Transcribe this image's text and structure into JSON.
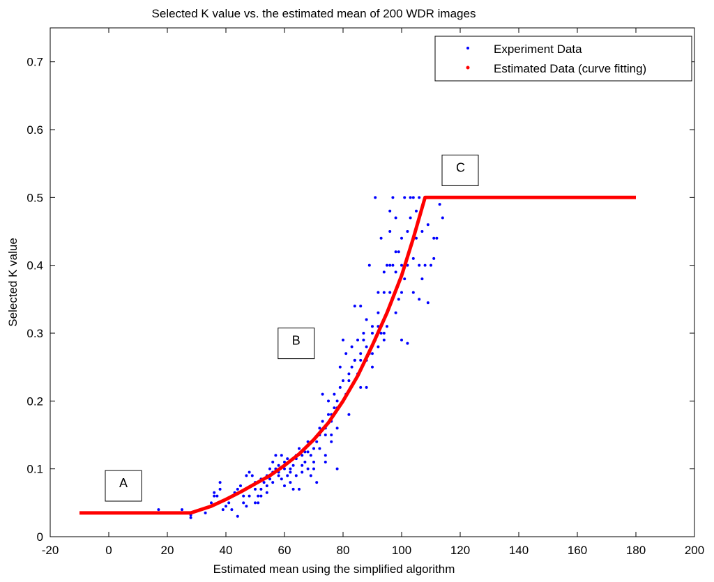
{
  "chart_data": {
    "type": "scatter",
    "title": "Selected K value vs. the estimated mean of 200 WDR images",
    "xlabel": "Estimated mean using the simplified algorithm",
    "ylabel": "Selected K value",
    "xlim": [
      -20,
      200
    ],
    "ylim": [
      0,
      0.75
    ],
    "xticks": [
      -20,
      0,
      20,
      40,
      60,
      80,
      100,
      120,
      140,
      160,
      180,
      200
    ],
    "xtick_labels": [
      "-20",
      "0",
      "20",
      "40",
      "60",
      "80",
      "100",
      "120",
      "140",
      "160",
      "180",
      "200"
    ],
    "yticks": [
      0,
      0.1,
      0.2,
      0.3,
      0.4,
      0.5,
      0.6,
      0.7
    ],
    "ytick_labels": [
      "0",
      "0.1",
      "0.2",
      "0.3",
      "0.4",
      "0.5",
      "0.6",
      "0.7"
    ],
    "grid": false,
    "legend_position": "top-right",
    "series": [
      {
        "name": "Experiment Data",
        "kind": "scatter",
        "color": "#0000ff",
        "points": [
          [
            17,
            0.04
          ],
          [
            25,
            0.04
          ],
          [
            28,
            0.028
          ],
          [
            28,
            0.032
          ],
          [
            33,
            0.035
          ],
          [
            35,
            0.05
          ],
          [
            36,
            0.065
          ],
          [
            37,
            0.06
          ],
          [
            38,
            0.08
          ],
          [
            39,
            0.04
          ],
          [
            40,
            0.045
          ],
          [
            41,
            0.05
          ],
          [
            42,
            0.06
          ],
          [
            43,
            0.065
          ],
          [
            44,
            0.03
          ],
          [
            44,
            0.07
          ],
          [
            45,
            0.075
          ],
          [
            46,
            0.05
          ],
          [
            47,
            0.045
          ],
          [
            47,
            0.09
          ],
          [
            48,
            0.06
          ],
          [
            48,
            0.095
          ],
          [
            49,
            0.09
          ],
          [
            50,
            0.05
          ],
          [
            50,
            0.08
          ],
          [
            51,
            0.06
          ],
          [
            51,
            0.05
          ],
          [
            52,
            0.07
          ],
          [
            52,
            0.085
          ],
          [
            53,
            0.08
          ],
          [
            54,
            0.065
          ],
          [
            54,
            0.09
          ],
          [
            55,
            0.085
          ],
          [
            55,
            0.1
          ],
          [
            56,
            0.08
          ],
          [
            56,
            0.11
          ],
          [
            57,
            0.1
          ],
          [
            57,
            0.12
          ],
          [
            58,
            0.09
          ],
          [
            58,
            0.095
          ],
          [
            59,
            0.085
          ],
          [
            59,
            0.12
          ],
          [
            60,
            0.075
          ],
          [
            60,
            0.1
          ],
          [
            60,
            0.11
          ],
          [
            61,
            0.09
          ],
          [
            61,
            0.115
          ],
          [
            62,
            0.08
          ],
          [
            62,
            0.1
          ],
          [
            63,
            0.07
          ],
          [
            63,
            0.105
          ],
          [
            64,
            0.09
          ],
          [
            64,
            0.12
          ],
          [
            65,
            0.13
          ],
          [
            65,
            0.07
          ],
          [
            66,
            0.12
          ],
          [
            66,
            0.095
          ],
          [
            67,
            0.11
          ],
          [
            67,
            0.125
          ],
          [
            68,
            0.1
          ],
          [
            68,
            0.14
          ],
          [
            69,
            0.12
          ],
          [
            69,
            0.09
          ],
          [
            70,
            0.1
          ],
          [
            70,
            0.13
          ],
          [
            71,
            0.14
          ],
          [
            71,
            0.08
          ],
          [
            72,
            0.15
          ],
          [
            72,
            0.16
          ],
          [
            73,
            0.17
          ],
          [
            73,
            0.21
          ],
          [
            74,
            0.16
          ],
          [
            74,
            0.11
          ],
          [
            75,
            0.18
          ],
          [
            75,
            0.2
          ],
          [
            76,
            0.17
          ],
          [
            76,
            0.15
          ],
          [
            77,
            0.19
          ],
          [
            77,
            0.21
          ],
          [
            78,
            0.1
          ],
          [
            78,
            0.2
          ],
          [
            79,
            0.25
          ],
          [
            79,
            0.22
          ],
          [
            80,
            0.23
          ],
          [
            80,
            0.29
          ],
          [
            81,
            0.21
          ],
          [
            81,
            0.27
          ],
          [
            82,
            0.18
          ],
          [
            82,
            0.23
          ],
          [
            83,
            0.25
          ],
          [
            83,
            0.28
          ],
          [
            84,
            0.26
          ],
          [
            84,
            0.34
          ],
          [
            85,
            0.24
          ],
          [
            85,
            0.29
          ],
          [
            86,
            0.27
          ],
          [
            86,
            0.34
          ],
          [
            87,
            0.3
          ],
          [
            87,
            0.29
          ],
          [
            88,
            0.26
          ],
          [
            88,
            0.32
          ],
          [
            89,
            0.27
          ],
          [
            89,
            0.4
          ],
          [
            90,
            0.25
          ],
          [
            90,
            0.31
          ],
          [
            91,
            0.29
          ],
          [
            91,
            0.5
          ],
          [
            92,
            0.33
          ],
          [
            92,
            0.36
          ],
          [
            93,
            0.3
          ],
          [
            93,
            0.44
          ],
          [
            94,
            0.29
          ],
          [
            94,
            0.39
          ],
          [
            95,
            0.31
          ],
          [
            95,
            0.4
          ],
          [
            96,
            0.45
          ],
          [
            96,
            0.36
          ],
          [
            97,
            0.4
          ],
          [
            97,
            0.5
          ],
          [
            98,
            0.47
          ],
          [
            98,
            0.39
          ],
          [
            99,
            0.35
          ],
          [
            99,
            0.42
          ],
          [
            100,
            0.29
          ],
          [
            100,
            0.44
          ],
          [
            101,
            0.38
          ],
          [
            101,
            0.5
          ],
          [
            102,
            0.285
          ],
          [
            102,
            0.4
          ],
          [
            103,
            0.47
          ],
          [
            103,
            0.5
          ],
          [
            104,
            0.41
          ],
          [
            104,
            0.36
          ],
          [
            105,
            0.44
          ],
          [
            105,
            0.48
          ],
          [
            106,
            0.35
          ],
          [
            106,
            0.4
          ],
          [
            107,
            0.45
          ],
          [
            107,
            0.38
          ],
          [
            108,
            0.5
          ],
          [
            108,
            0.4
          ],
          [
            109,
            0.345
          ],
          [
            109,
            0.46
          ],
          [
            110,
            0.4
          ],
          [
            110,
            0.5
          ],
          [
            111,
            0.44
          ],
          [
            111,
            0.41
          ],
          [
            112,
            0.5
          ],
          [
            112,
            0.44
          ],
          [
            113,
            0.49
          ],
          [
            114,
            0.47
          ],
          [
            96,
            0.48
          ],
          [
            98,
            0.33
          ],
          [
            100,
            0.36
          ],
          [
            86,
            0.22
          ],
          [
            84,
            0.23
          ],
          [
            88,
            0.22
          ],
          [
            90,
            0.27
          ],
          [
            92,
            0.28
          ],
          [
            94,
            0.3
          ],
          [
            78,
            0.16
          ],
          [
            76,
            0.14
          ],
          [
            74,
            0.12
          ],
          [
            72,
            0.13
          ],
          [
            70,
            0.11
          ],
          [
            68,
            0.125
          ],
          [
            66,
            0.105
          ],
          [
            64,
            0.115
          ],
          [
            62,
            0.095
          ],
          [
            58,
            0.105
          ],
          [
            56,
            0.095
          ],
          [
            54,
            0.075
          ],
          [
            52,
            0.06
          ],
          [
            50,
            0.07
          ],
          [
            46,
            0.06
          ],
          [
            42,
            0.04
          ],
          [
            40,
            0.055
          ],
          [
            38,
            0.07
          ],
          [
            36,
            0.06
          ],
          [
            104,
            0.5
          ],
          [
            106,
            0.5
          ],
          [
            102,
            0.45
          ],
          [
            100,
            0.4
          ],
          [
            98,
            0.42
          ],
          [
            96,
            0.4
          ],
          [
            94,
            0.36
          ],
          [
            92,
            0.31
          ],
          [
            90,
            0.3
          ],
          [
            88,
            0.28
          ],
          [
            86,
            0.26
          ],
          [
            84,
            0.26
          ],
          [
            82,
            0.24
          ],
          [
            80,
            0.2
          ],
          [
            78,
            0.19
          ],
          [
            76,
            0.18
          ],
          [
            74,
            0.15
          ]
        ]
      },
      {
        "name": "Estimated Data (curve fitting)",
        "kind": "line",
        "color": "#ff0000",
        "points": [
          [
            -10,
            0.035
          ],
          [
            28,
            0.035
          ],
          [
            35,
            0.045
          ],
          [
            40,
            0.055
          ],
          [
            45,
            0.066
          ],
          [
            50,
            0.078
          ],
          [
            55,
            0.09
          ],
          [
            60,
            0.105
          ],
          [
            65,
            0.122
          ],
          [
            70,
            0.143
          ],
          [
            75,
            0.168
          ],
          [
            80,
            0.2
          ],
          [
            85,
            0.237
          ],
          [
            90,
            0.282
          ],
          [
            95,
            0.33
          ],
          [
            100,
            0.385
          ],
          [
            104,
            0.44
          ],
          [
            108,
            0.5
          ],
          [
            130,
            0.5
          ],
          [
            150,
            0.5
          ],
          [
            180,
            0.5
          ]
        ]
      }
    ],
    "annotations": [
      {
        "text": "A",
        "x": 5,
        "y": 0.075
      },
      {
        "text": "B",
        "x": 64,
        "y": 0.285
      },
      {
        "text": "C",
        "x": 120,
        "y": 0.54
      }
    ]
  }
}
